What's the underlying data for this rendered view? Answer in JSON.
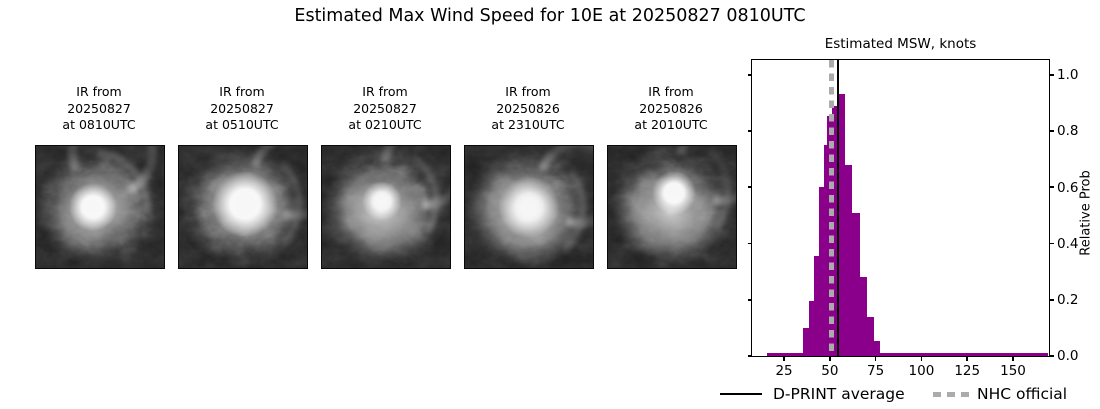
{
  "figure": {
    "title": "Estimated Max Wind Speed for 10E at 20250827 0810UTC"
  },
  "satellite_images": [
    {
      "caption_lines": [
        "IR from",
        "20250827",
        "at 0810UTC"
      ]
    },
    {
      "caption_lines": [
        "IR from",
        "20250827",
        "at 0510UTC"
      ]
    },
    {
      "caption_lines": [
        "IR from",
        "20250827",
        "at 0210UTC"
      ]
    },
    {
      "caption_lines": [
        "IR from",
        "20250826",
        "at 2310UTC"
      ]
    },
    {
      "caption_lines": [
        "IR from",
        "20250826",
        "at 2010UTC"
      ]
    }
  ],
  "chart_data": {
    "type": "bar",
    "title": "Estimated MSW, knots",
    "ylabel": "Relative Prob",
    "xlabel": "",
    "xlim": [
      7.5,
      169
    ],
    "ylim": [
      0,
      1.048
    ],
    "x_ticks": [
      25,
      50,
      75,
      100,
      125,
      150
    ],
    "y_ticks": [
      {
        "v": 0.0,
        "label": "0.0"
      },
      {
        "v": 0.2,
        "label": "0.2"
      },
      {
        "v": 0.4,
        "label": "0.4"
      },
      {
        "v": 0.6,
        "label": "0.6"
      },
      {
        "v": 0.8,
        "label": "0.8"
      },
      {
        "v": 1.0,
        "label": "1.0"
      }
    ],
    "bar_color": "#8B008B",
    "bars_kt_edges_and_relative_prob": [
      [
        15.5,
        35.5,
        0.012
      ],
      [
        35.5,
        38.5,
        0.1
      ],
      [
        38.5,
        41.5,
        0.195
      ],
      [
        41.5,
        44.0,
        0.355
      ],
      [
        44.0,
        46.7,
        0.6
      ],
      [
        46.7,
        48.3,
        0.75
      ],
      [
        48.3,
        51.0,
        0.855
      ],
      [
        51.0,
        54.3,
        0.89
      ],
      [
        54.3,
        58.1,
        0.93
      ],
      [
        58.1,
        62.3,
        0.68
      ],
      [
        62.3,
        66.3,
        0.51
      ],
      [
        66.3,
        70.2,
        0.28
      ],
      [
        70.2,
        74.0,
        0.14
      ],
      [
        74.0,
        77.6,
        0.054
      ],
      [
        77.6,
        169.0,
        0.012
      ]
    ],
    "dprint_average_kt": 54.5,
    "nhc_official_kt": 51,
    "line_colors": {
      "dprint_average": "#000000",
      "nhc_official": "#ababab"
    },
    "legend": [
      {
        "label": "D-PRINT average",
        "style": "solid black line"
      },
      {
        "label": "NHC official",
        "style": "dotted gray line"
      }
    ]
  }
}
